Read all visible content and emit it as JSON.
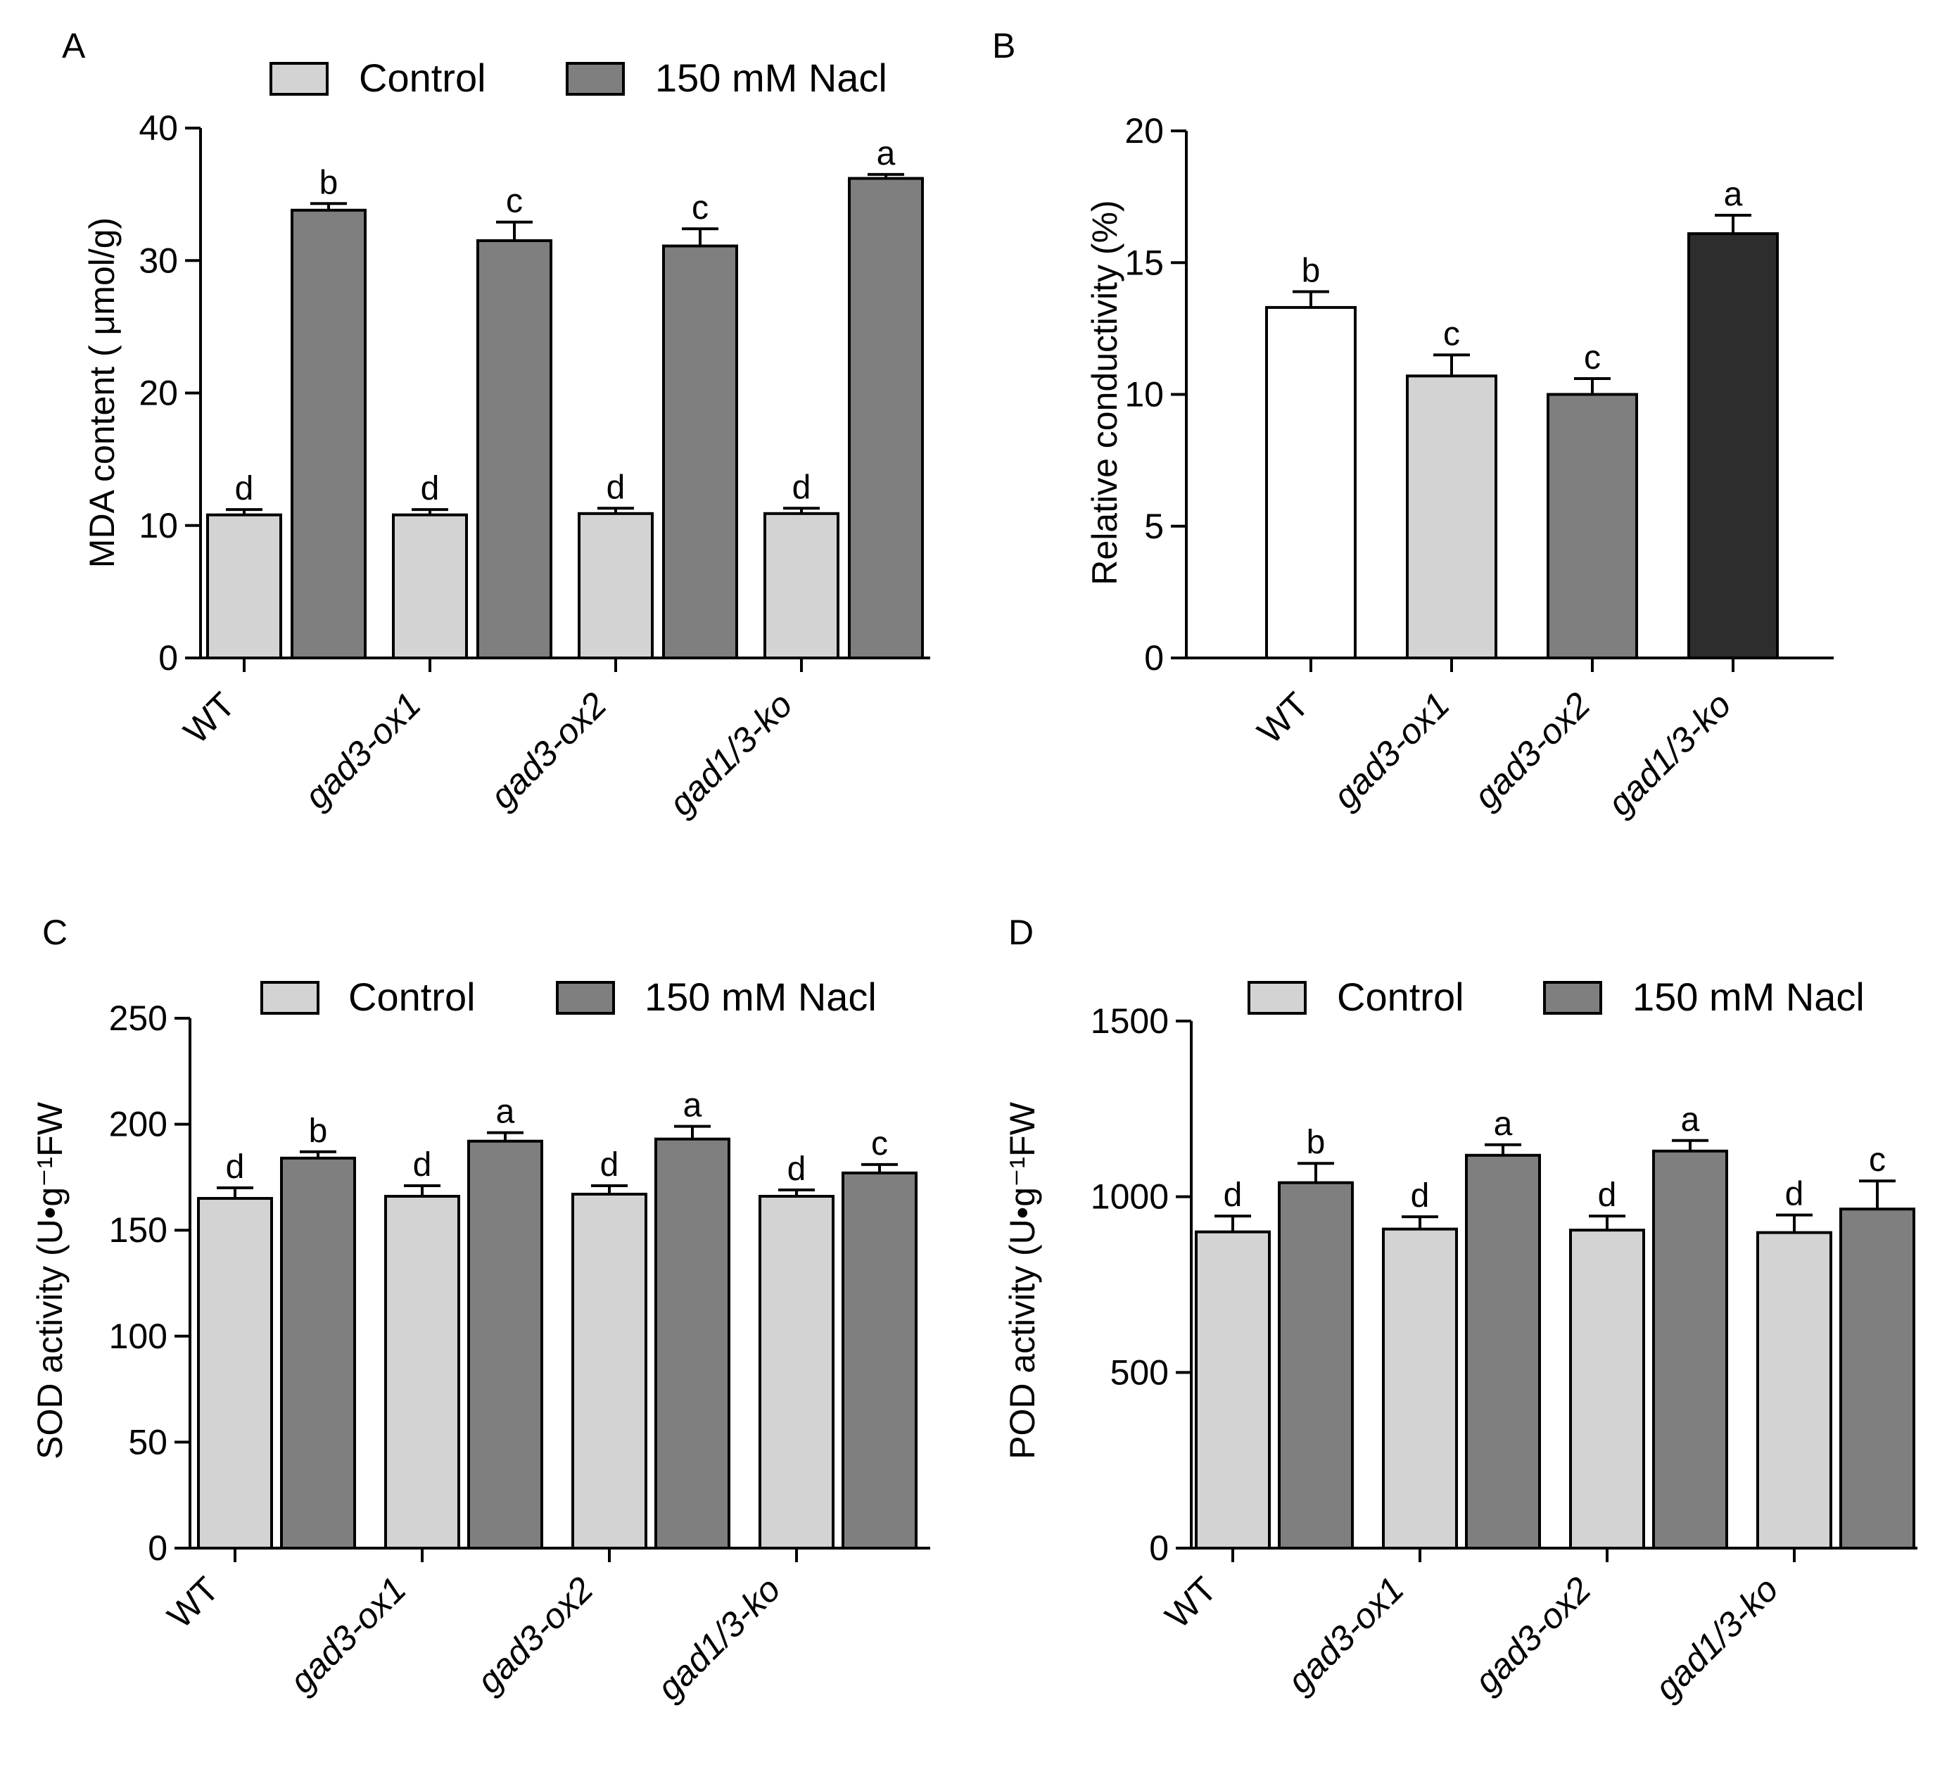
{
  "chart_data": [
    {
      "panel": "A",
      "type": "bar",
      "ylabel": "MDA content ( μmol/g)",
      "xlabel": "",
      "ylim": [
        0,
        40
      ],
      "yticks": [
        0,
        10,
        20,
        30,
        40
      ],
      "grid": false,
      "legend_placement": "top",
      "categories": [
        "WT",
        "gad3-ox1",
        "gad3-ox2",
        "gad1/3-ko"
      ],
      "series": [
        {
          "name": "Control",
          "color": "#d3d3d3",
          "values": [
            10.8,
            10.8,
            10.9,
            10.9
          ],
          "errors": [
            0.4,
            0.4,
            0.4,
            0.4
          ],
          "labels": [
            "d",
            "d",
            "d",
            "d"
          ]
        },
        {
          "name": "150 mM Nacl",
          "color": "#7f7f7f",
          "values": [
            33.8,
            31.5,
            31.1,
            36.2
          ],
          "errors": [
            0.5,
            1.4,
            1.3,
            0.3
          ],
          "labels": [
            "b",
            "c",
            "c",
            "a"
          ]
        }
      ]
    },
    {
      "panel": "B",
      "type": "bar",
      "ylabel": "Relative conductivity (%)",
      "xlabel": "",
      "ylim": [
        0,
        20
      ],
      "yticks": [
        0,
        5,
        10,
        15,
        20
      ],
      "grid": false,
      "legend_placement": "none",
      "categories": [
        "WT",
        "gad3-ox1",
        "gad3-ox2",
        "gad1/3-ko"
      ],
      "bar_colors": [
        "#ffffff",
        "#d3d3d3",
        "#7f7f7f",
        "#2d2d2d"
      ],
      "series": [
        {
          "values": [
            13.3,
            10.7,
            10.0,
            16.1
          ],
          "errors": [
            0.6,
            0.8,
            0.6,
            0.7
          ],
          "labels": [
            "b",
            "c",
            "c",
            "a"
          ]
        }
      ]
    },
    {
      "panel": "C",
      "type": "bar",
      "ylabel": "SOD activity (U•g⁻¹FW",
      "xlabel": "",
      "ylim": [
        0,
        250
      ],
      "yticks": [
        0,
        50,
        100,
        150,
        200,
        250
      ],
      "grid": false,
      "legend_placement": "top",
      "categories": [
        "WT",
        "gad3-ox1",
        "gad3-ox2",
        "gad1/3-ko"
      ],
      "series": [
        {
          "name": "Control",
          "color": "#d3d3d3",
          "values": [
            165,
            166,
            167,
            166
          ],
          "errors": [
            5,
            5,
            4,
            3
          ],
          "labels": [
            "d",
            "d",
            "d",
            "d"
          ]
        },
        {
          "name": "150 mM Nacl",
          "color": "#7f7f7f",
          "values": [
            184,
            192,
            193,
            177
          ],
          "errors": [
            3,
            4,
            6,
            4
          ],
          "labels": [
            "b",
            "a",
            "a",
            "c"
          ]
        }
      ]
    },
    {
      "panel": "D",
      "type": "bar",
      "ylabel": "POD activity (U•g⁻¹FW",
      "xlabel": "",
      "ylim": [
        0,
        1500
      ],
      "yticks": [
        0,
        500,
        1000,
        1500
      ],
      "grid": false,
      "legend_placement": "top",
      "categories": [
        "WT",
        "gad3-ox1",
        "gad3-ox2",
        "gad1/3-ko"
      ],
      "series": [
        {
          "name": "Control",
          "color": "#d3d3d3",
          "values": [
            900,
            908,
            905,
            898
          ],
          "errors": [
            45,
            35,
            40,
            50
          ],
          "labels": [
            "d",
            "d",
            "d",
            "d"
          ]
        },
        {
          "name": "150 mM Nacl",
          "color": "#7f7f7f",
          "values": [
            1040,
            1118,
            1130,
            965
          ],
          "errors": [
            55,
            30,
            30,
            80
          ],
          "labels": [
            "b",
            "a",
            "a",
            "c"
          ]
        }
      ]
    }
  ]
}
